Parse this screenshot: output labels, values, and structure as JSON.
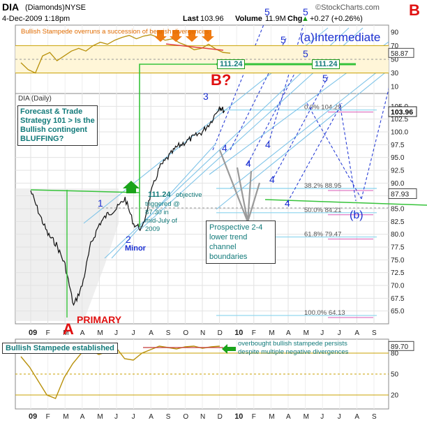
{
  "header": {
    "ticker": "DIA",
    "name": "(Diamonds)",
    "exchange": "NYSE",
    "date": "4-Dec-2009 1:18pm",
    "last_label": "Last",
    "last_value": "103.96",
    "volume_label": "Volume",
    "volume_value": "11.9M",
    "chg_label": "Chg",
    "chg_value": "+0.27 (+0.26%)",
    "chg_arrow": "▲",
    "brand": "©StockCharts.com"
  },
  "annotations": {
    "top_note": "Bullish Stampede overruns a succession of bearish divergences",
    "forecast_box": "Forecast & Trade Strategy 101 > Is the Bullish contingent BLUFFING?",
    "objective_value": "111.24",
    "objective_text1": "objective",
    "objective_text2": "triggered @",
    "objective_text3": "87.30 in",
    "objective_text4": "mid-July of",
    "objective_text5": "2009",
    "channel_box_l1": "Prospective 2-4",
    "channel_box_l2": "lower trend",
    "channel_box_l3": "channel",
    "channel_box_l4": "boundaries",
    "intermediate": "(a)Intermediate",
    "primary": "PRIMARY",
    "minor": "Minor",
    "b_question": "B?",
    "b_label": "B",
    "a_label": "A",
    "stampede_box": "Bullish Stampede established",
    "bottom_note_l1": "overbought bullish stampede persists",
    "bottom_note_l2": "despite multiple negative divergences",
    "panel_label": "DIA (Daily)",
    "level_111": "111.24",
    "level_111b": "111.24",
    "wave_b": "(b)"
  },
  "waves": {
    "w1": "1",
    "w2": "2",
    "w3": "3",
    "w4": "4",
    "w5": "5"
  },
  "fib_labels": [
    {
      "text": "0.0% 104.29"
    },
    {
      "text": "38.2% 88.95"
    },
    {
      "text": "50.0% 84.21"
    },
    {
      "text": "61.8% 79.47"
    },
    {
      "text": "100.0% 64.13"
    }
  ],
  "chart_data": [
    {
      "type": "line",
      "panel": "top oscillator",
      "ylim": [
        0,
        100
      ],
      "yticks": [
        "10",
        "30",
        "50",
        "70",
        "90"
      ],
      "last_value": "58.87",
      "levels": [
        30,
        70
      ],
      "series": [
        {
          "values": [
            45,
            35,
            30,
            55,
            60,
            48,
            55,
            62,
            66,
            62,
            70,
            75,
            72,
            78,
            82,
            85,
            80,
            84,
            86,
            82,
            78,
            80,
            74,
            70,
            64,
            66,
            72,
            65,
            60,
            59
          ]
        }
      ]
    },
    {
      "type": "line",
      "panel": "price",
      "xlabel": "",
      "ylabel": "",
      "ylim": [
        62.5,
        107.5
      ],
      "yticks": [
        "65.0",
        "67.5",
        "70.0",
        "72.5",
        "75.0",
        "77.5",
        "80.0",
        "82.5",
        "85.0",
        "87.5",
        "90.0",
        "92.5",
        "95.0",
        "97.5",
        "100.0",
        "102.5",
        "105.0"
      ],
      "xticks": [
        "09",
        "F",
        "M",
        "A",
        "M",
        "J",
        "J",
        "A",
        "S",
        "O",
        "N",
        "D",
        "10",
        "F",
        "M",
        "A",
        "M",
        "J",
        "J",
        "A",
        "S"
      ],
      "last_value": "103.96",
      "right_label_2": "87.93",
      "series": [
        {
          "name": "",
          "x": [
            0,
            0.5,
            1,
            1.5,
            2,
            2.5,
            3,
            3.5,
            4,
            4.5,
            5,
            5.5,
            6,
            6.5,
            7,
            7.5,
            8,
            8.5,
            9,
            9.5,
            10,
            10.5,
            11,
            11.3
          ],
          "values": [
            88.5,
            84,
            80,
            78,
            74,
            66,
            70,
            78,
            82,
            84,
            85,
            87,
            82,
            81,
            88,
            93,
            95,
            97,
            98,
            99,
            100,
            102,
            105,
            104
          ]
        }
      ],
      "fib_levels": [
        104.29,
        88.95,
        84.21,
        79.47,
        64.13
      ],
      "horizontal_level": 111.24
    },
    {
      "type": "line",
      "panel": "bottom oscillator",
      "ylim": [
        0,
        100
      ],
      "yticks": [
        "20",
        "50",
        "80"
      ],
      "last_value": "89.70",
      "series": [
        {
          "values": [
            75,
            60,
            40,
            20,
            15,
            45,
            65,
            80,
            85,
            78,
            82,
            88,
            72,
            70,
            80,
            85,
            90,
            88,
            86,
            89,
            90,
            87,
            89,
            90
          ]
        }
      ]
    }
  ]
}
